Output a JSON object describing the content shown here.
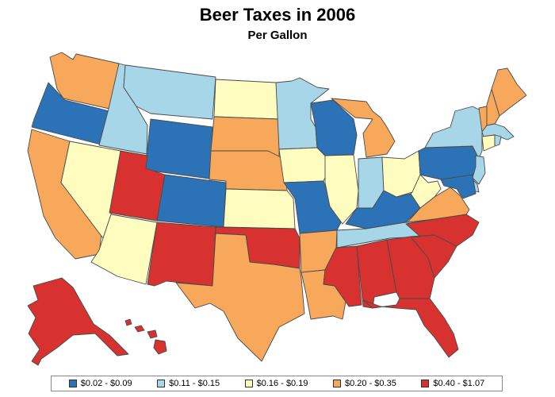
{
  "title": "Beer Taxes in 2006",
  "subtitle": "Per Gallon",
  "legend": [
    {
      "label": "$0.02 - $0.09",
      "color": "#2b73b6"
    },
    {
      "label": "$0.11 - $0.15",
      "color": "#a6d6e8"
    },
    {
      "label": "$0.16 - $0.19",
      "color": "#fefdbf"
    },
    {
      "label": "$0.20 - $0.35",
      "color": "#f8a85a"
    },
    {
      "label": "$0.40 - $1.07",
      "color": "#d73130"
    }
  ],
  "states": [
    {
      "code": "WA",
      "cls": 3
    },
    {
      "code": "OR",
      "cls": 0
    },
    {
      "code": "CA",
      "cls": 3
    },
    {
      "code": "NV",
      "cls": 2
    },
    {
      "code": "ID",
      "cls": 1
    },
    {
      "code": "MT",
      "cls": 1
    },
    {
      "code": "WY",
      "cls": 0
    },
    {
      "code": "UT",
      "cls": 4
    },
    {
      "code": "AZ",
      "cls": 2
    },
    {
      "code": "CO",
      "cls": 0
    },
    {
      "code": "NM",
      "cls": 4
    },
    {
      "code": "ND",
      "cls": 2
    },
    {
      "code": "SD",
      "cls": 3
    },
    {
      "code": "NE",
      "cls": 3
    },
    {
      "code": "KS",
      "cls": 2
    },
    {
      "code": "OK",
      "cls": 4
    },
    {
      "code": "TX",
      "cls": 3
    },
    {
      "code": "MN",
      "cls": 1
    },
    {
      "code": "IA",
      "cls": 2
    },
    {
      "code": "MO",
      "cls": 0
    },
    {
      "code": "AR",
      "cls": 3
    },
    {
      "code": "LA",
      "cls": 3
    },
    {
      "code": "WI",
      "cls": 0
    },
    {
      "code": "IL",
      "cls": 2
    },
    {
      "code": "MI",
      "cls": 3
    },
    {
      "code": "IN",
      "cls": 1
    },
    {
      "code": "OH",
      "cls": 2
    },
    {
      "code": "KY",
      "cls": 0
    },
    {
      "code": "TN",
      "cls": 1
    },
    {
      "code": "MS",
      "cls": 4
    },
    {
      "code": "AL",
      "cls": 4
    },
    {
      "code": "GA",
      "cls": 4
    },
    {
      "code": "FL",
      "cls": 4
    },
    {
      "code": "SC",
      "cls": 4
    },
    {
      "code": "NC",
      "cls": 4
    },
    {
      "code": "VA",
      "cls": 3
    },
    {
      "code": "WV",
      "cls": 2
    },
    {
      "code": "PA",
      "cls": 0
    },
    {
      "code": "NY",
      "cls": 1
    },
    {
      "code": "VT",
      "cls": 3
    },
    {
      "code": "NH",
      "cls": 3
    },
    {
      "code": "ME",
      "cls": 3
    },
    {
      "code": "MA",
      "cls": 1
    },
    {
      "code": "CT",
      "cls": 2
    },
    {
      "code": "RI",
      "cls": 1
    },
    {
      "code": "NJ",
      "cls": 1
    },
    {
      "code": "DE",
      "cls": 1
    },
    {
      "code": "MD",
      "cls": 0
    },
    {
      "code": "AK",
      "cls": 4
    },
    {
      "code": "HI",
      "cls": 4
    }
  ]
}
